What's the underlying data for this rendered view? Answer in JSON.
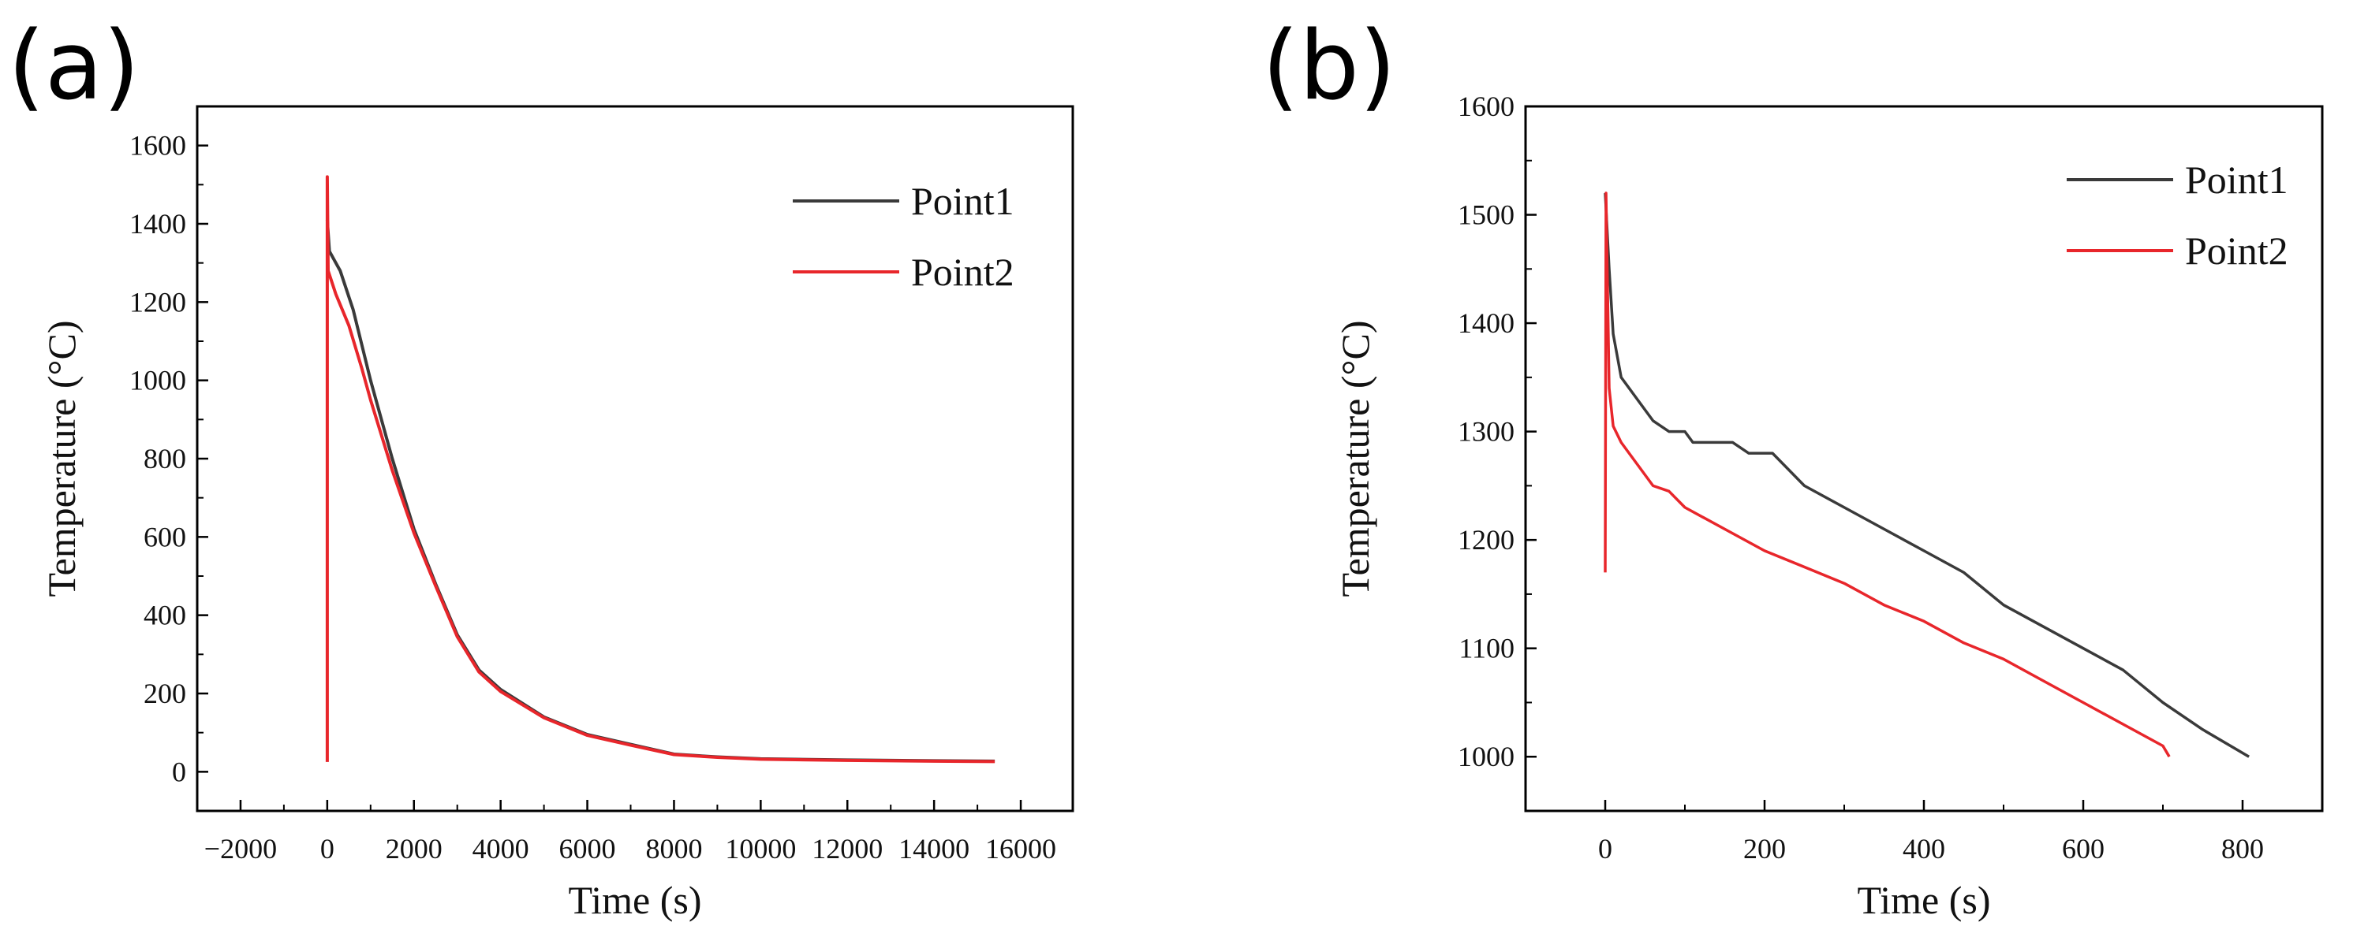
{
  "chart_data": [
    {
      "type": "line",
      "panel_label": "(a)",
      "xlabel": "Time (s)",
      "ylabel": "Temperature (°C)",
      "xlim": [
        -3000,
        17200
      ],
      "ylim": [
        -100,
        1700
      ],
      "xticks": [
        -2000,
        0,
        2000,
        4000,
        6000,
        8000,
        10000,
        12000,
        14000,
        16000
      ],
      "xtick_labels": [
        "−2000",
        "0",
        "2000",
        "4000",
        "6000",
        "8000",
        "10000",
        "12000",
        "14000",
        "16000"
      ],
      "yticks": [
        0,
        200,
        400,
        600,
        800,
        1000,
        1200,
        1400,
        1600
      ],
      "ytick_labels": [
        "0",
        "200",
        "400",
        "600",
        "800",
        "1000",
        "1200",
        "1400",
        "1600"
      ],
      "legend_position": "top-right",
      "series": [
        {
          "name": "Point1",
          "color": "#3a3a3a",
          "x": [
            0,
            50,
            200,
            300,
            600,
            1000,
            1500,
            2000,
            2500,
            3000,
            3500,
            4000,
            5000,
            6000,
            7000,
            8000,
            9000,
            10000,
            12000,
            14000,
            15400
          ],
          "y": [
            1410,
            1330,
            1300,
            1280,
            1180,
            1000,
            800,
            620,
            480,
            350,
            260,
            210,
            140,
            95,
            70,
            45,
            38,
            33,
            30,
            28,
            27
          ]
        },
        {
          "name": "Point2",
          "color": "#e8262b",
          "x": [
            0,
            0,
            20,
            200,
            500,
            800,
            1000,
            1500,
            2000,
            2500,
            3000,
            3500,
            4000,
            5000,
            6000,
            7000,
            8000,
            9000,
            10000,
            12000,
            14000,
            15400
          ],
          "y": [
            25,
            1520,
            1280,
            1220,
            1140,
            1030,
            950,
            770,
            610,
            475,
            345,
            255,
            205,
            138,
            93,
            68,
            44,
            37,
            32,
            29,
            27,
            26
          ]
        }
      ]
    },
    {
      "type": "line",
      "panel_label": "(b)",
      "xlabel": "Time (s)",
      "ylabel": "Temperature (°C)",
      "xlim": [
        -100,
        900
      ],
      "ylim": [
        950,
        1600
      ],
      "xticks": [
        0,
        200,
        400,
        600,
        800
      ],
      "xtick_labels": [
        "0",
        "200",
        "400",
        "600",
        "800"
      ],
      "yticks": [
        1000,
        1100,
        1200,
        1300,
        1400,
        1500,
        1600
      ],
      "ytick_labels": [
        "1000",
        "1100",
        "1200",
        "1300",
        "1400",
        "1500",
        "1600"
      ],
      "legend_position": "top-right",
      "series": [
        {
          "name": "Point1",
          "color": "#3a3a3a",
          "x": [
            0,
            5,
            10,
            20,
            40,
            60,
            80,
            100,
            110,
            160,
            180,
            210,
            250,
            300,
            350,
            400,
            450,
            500,
            550,
            600,
            650,
            700,
            750,
            808
          ],
          "y": [
            1520,
            1450,
            1390,
            1350,
            1330,
            1310,
            1300,
            1300,
            1290,
            1290,
            1280,
            1280,
            1250,
            1230,
            1210,
            1190,
            1170,
            1140,
            1120,
            1100,
            1080,
            1050,
            1025,
            1000
          ]
        },
        {
          "name": "Point2",
          "color": "#e8262b",
          "x": [
            0,
            1,
            5,
            10,
            20,
            40,
            60,
            80,
            100,
            150,
            200,
            250,
            300,
            350,
            400,
            450,
            500,
            550,
            600,
            650,
            700,
            708
          ],
          "y": [
            1170,
            1520,
            1340,
            1305,
            1290,
            1270,
            1250,
            1245,
            1230,
            1210,
            1190,
            1175,
            1160,
            1140,
            1125,
            1105,
            1090,
            1070,
            1050,
            1030,
            1010,
            1000
          ]
        }
      ]
    }
  ]
}
